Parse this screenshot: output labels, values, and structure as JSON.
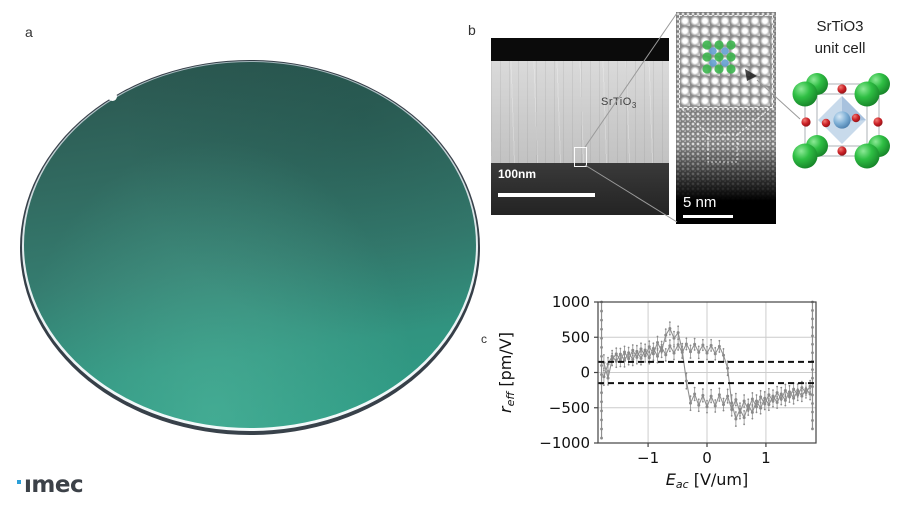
{
  "panels": {
    "a": {
      "label": "a"
    },
    "b": {
      "label": "b",
      "tem": {
        "material_label_main": "SrTiO",
        "material_label_sub": "3",
        "scale_text": "100nm"
      },
      "inset": {
        "scale_text": "5 nm"
      },
      "unit_cell": {
        "caption_line1": "SrTiO3",
        "caption_line2": "unit cell"
      }
    },
    "c": {
      "label": "c"
    }
  },
  "logo": {
    "text": "ımec"
  },
  "colors": {
    "wafer_top": "#2b5750",
    "wafer_bottom": "#2f9c85",
    "wafer_rim": "#39424b",
    "overlay_green": "#3db54e",
    "overlay_blue": "#64a0d2",
    "unitcell_sr_green": "#2fbf44",
    "unitcell_o_red": "#cc2127",
    "unitcell_ti_blue": "#7fb0d6",
    "unitcell_octahedron": "#b9cfe6",
    "chart_data_gray": "#8a8a8a",
    "chart_dashed_black": "#111111",
    "logo_blue": "#2b9fd8"
  },
  "chart_data": {
    "type": "scatter",
    "title": "",
    "xlabel": {
      "main": "E",
      "sub": "ac",
      "rest": " [V/um]"
    },
    "ylabel": {
      "main": "r",
      "sub": "eff",
      "rest": " [pm/V]"
    },
    "xlim": [
      -1.85,
      1.85
    ],
    "ylim": [
      -1000,
      1000
    ],
    "grid": true,
    "legend": "none",
    "xticks": [
      {
        "v": -1,
        "label": "−1"
      },
      {
        "v": 0,
        "label": "0"
      },
      {
        "v": 1,
        "label": "1"
      }
    ],
    "yticks": [
      {
        "v": 1000,
        "label": "1000"
      },
      {
        "v": 500,
        "label": "500"
      },
      {
        "v": 0,
        "label": "0"
      },
      {
        "v": -500,
        "label": "−500"
      },
      {
        "v": -1000,
        "label": "−1000"
      }
    ],
    "dashed_hlines": [
      150,
      -150
    ],
    "series": [
      {
        "name": "sweep-branch-switch-positive",
        "points": [
          [
            -1.75,
            -60,
            120
          ],
          [
            -1.68,
            120,
            90
          ],
          [
            -1.61,
            230,
            80
          ],
          [
            -1.54,
            160,
            85
          ],
          [
            -1.47,
            260,
            80
          ],
          [
            -1.4,
            170,
            90
          ],
          [
            -1.33,
            280,
            75
          ],
          [
            -1.26,
            185,
            85
          ],
          [
            -1.19,
            300,
            80
          ],
          [
            -1.12,
            200,
            90
          ],
          [
            -1.05,
            320,
            80
          ],
          [
            -0.98,
            210,
            85
          ],
          [
            -0.91,
            340,
            75
          ],
          [
            -0.84,
            230,
            90
          ],
          [
            -0.77,
            360,
            80
          ],
          [
            -0.7,
            250,
            85
          ],
          [
            -0.63,
            380,
            80
          ],
          [
            -0.56,
            275,
            90
          ],
          [
            -0.49,
            395,
            75
          ],
          [
            -0.42,
            285,
            85
          ],
          [
            -0.35,
            405,
            80
          ],
          [
            -0.28,
            295,
            90
          ],
          [
            -0.21,
            400,
            80
          ],
          [
            -0.14,
            285,
            85
          ],
          [
            -0.07,
            390,
            75
          ],
          [
            0,
            275,
            90
          ],
          [
            0.07,
            385,
            80
          ],
          [
            0.14,
            265,
            85
          ],
          [
            0.21,
            370,
            80
          ],
          [
            0.28,
            245,
            90
          ],
          [
            0.35,
            60,
            100
          ],
          [
            0.42,
            -430,
            110
          ],
          [
            0.49,
            -660,
            100
          ],
          [
            0.56,
            -525,
            90
          ],
          [
            0.63,
            -640,
            95
          ],
          [
            0.7,
            -465,
            85
          ],
          [
            0.77,
            -565,
            90
          ],
          [
            0.84,
            -405,
            85
          ],
          [
            0.91,
            -505,
            80
          ],
          [
            0.98,
            -365,
            90
          ],
          [
            1.05,
            -455,
            80
          ],
          [
            1.12,
            -335,
            85
          ],
          [
            1.19,
            -425,
            80
          ],
          [
            1.26,
            -305,
            90
          ],
          [
            1.33,
            -395,
            75
          ],
          [
            1.4,
            -275,
            85
          ],
          [
            1.47,
            -365,
            80
          ],
          [
            1.54,
            -255,
            90
          ],
          [
            1.61,
            -335,
            75
          ],
          [
            1.68,
            -235,
            85
          ],
          [
            1.75,
            -305,
            80
          ]
        ]
      },
      {
        "name": "sweep-branch-switch-negative",
        "points": [
          [
            -1.75,
            140,
            110
          ],
          [
            -1.68,
            -80,
            95
          ],
          [
            -1.61,
            185,
            85
          ],
          [
            -1.54,
            265,
            80
          ],
          [
            -1.47,
            175,
            90
          ],
          [
            -1.4,
            290,
            80
          ],
          [
            -1.33,
            195,
            85
          ],
          [
            -1.26,
            315,
            75
          ],
          [
            -1.19,
            215,
            90
          ],
          [
            -1.12,
            335,
            80
          ],
          [
            -1.05,
            235,
            85
          ],
          [
            -0.98,
            365,
            80
          ],
          [
            -0.91,
            265,
            90
          ],
          [
            -0.84,
            425,
            85
          ],
          [
            -0.77,
            305,
            90
          ],
          [
            -0.7,
            530,
            85
          ],
          [
            -0.63,
            625,
            90
          ],
          [
            -0.56,
            485,
            95
          ],
          [
            -0.49,
            565,
            90
          ],
          [
            -0.42,
            310,
            100
          ],
          [
            -0.35,
            -120,
            110
          ],
          [
            -0.28,
            -435,
            100
          ],
          [
            -0.21,
            -305,
            90
          ],
          [
            -0.14,
            -465,
            85
          ],
          [
            -0.07,
            -325,
            90
          ],
          [
            0,
            -485,
            85
          ],
          [
            0.07,
            -335,
            90
          ],
          [
            0.14,
            -475,
            85
          ],
          [
            0.21,
            -315,
            90
          ],
          [
            0.28,
            -455,
            85
          ],
          [
            0.35,
            -335,
            95
          ],
          [
            0.42,
            -525,
            90
          ],
          [
            0.49,
            -385,
            85
          ],
          [
            0.56,
            -565,
            90
          ],
          [
            0.63,
            -405,
            85
          ],
          [
            0.7,
            -525,
            80
          ],
          [
            0.77,
            -375,
            85
          ],
          [
            0.84,
            -485,
            80
          ],
          [
            0.91,
            -345,
            85
          ],
          [
            0.98,
            -445,
            80
          ],
          [
            1.05,
            -315,
            85
          ],
          [
            1.12,
            -405,
            80
          ],
          [
            1.19,
            -285,
            85
          ],
          [
            1.26,
            -375,
            80
          ],
          [
            1.33,
            -255,
            85
          ],
          [
            1.4,
            -345,
            75
          ],
          [
            1.47,
            -235,
            85
          ],
          [
            1.54,
            -315,
            80
          ],
          [
            1.61,
            -215,
            85
          ],
          [
            1.68,
            -285,
            75
          ],
          [
            1.75,
            -195,
            80
          ]
        ]
      }
    ],
    "edge_columns": [
      {
        "x": -1.79,
        "y_top": 1000,
        "y_bottom": -930,
        "n": 16
      },
      {
        "x": 1.79,
        "y_top": 1000,
        "y_bottom": -800,
        "n": 16
      }
    ]
  }
}
